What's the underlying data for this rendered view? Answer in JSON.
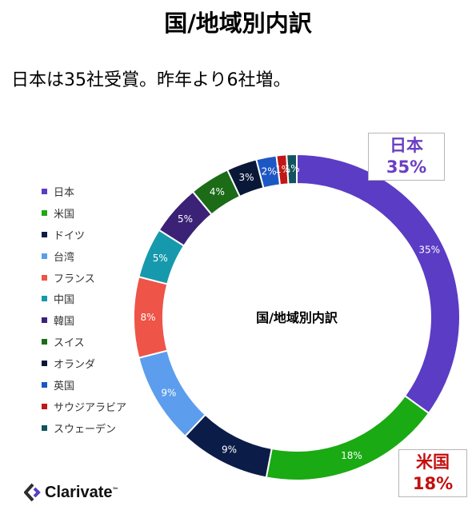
{
  "page_title": "国/地域別内訳",
  "subtitle": "日本は35社受賞。昨年より6社増。",
  "chart_data": {
    "type": "pie",
    "variant": "donut",
    "center_label": "国/地域別内訳",
    "legend_position": "left",
    "categories": [
      "日本",
      "米国",
      "ドイツ",
      "台湾",
      "フランス",
      "中国",
      "韓国",
      "スイス",
      "オランダ",
      "英国",
      "サウジアラビア",
      "スウェーデン"
    ],
    "values": [
      35,
      18,
      9,
      9,
      8,
      5,
      5,
      4,
      3,
      2,
      1,
      1
    ],
    "labels": [
      "35%",
      "18%",
      "9%",
      "9%",
      "8%",
      "5%",
      "5%",
      "4%",
      "3%",
      "2%",
      "1%",
      "1%"
    ],
    "colors": [
      "#5b3cc4",
      "#1aaa13",
      "#0c1c48",
      "#5c9ded",
      "#ee5447",
      "#1799ad",
      "#3b2277",
      "#1b6b17",
      "#0a1838",
      "#1d57c3",
      "#c01818",
      "#11545e"
    ],
    "label_colors": [
      "#ffffff",
      "#ffffff",
      "#ffffff",
      "#ffffff",
      "#ffffff",
      "#ffffff",
      "#ffffff",
      "#ffffff",
      "#ffffff",
      "#ffffff",
      "#ffffff",
      "#ffffff"
    ]
  },
  "callouts": {
    "japan": {
      "name": "日本",
      "value": "35%",
      "color": "#6a3fc2"
    },
    "usa": {
      "name": "米国",
      "value": "18%",
      "color": "#c40f0f"
    }
  },
  "logo": {
    "text": "Clarivate",
    "tm": "™"
  }
}
